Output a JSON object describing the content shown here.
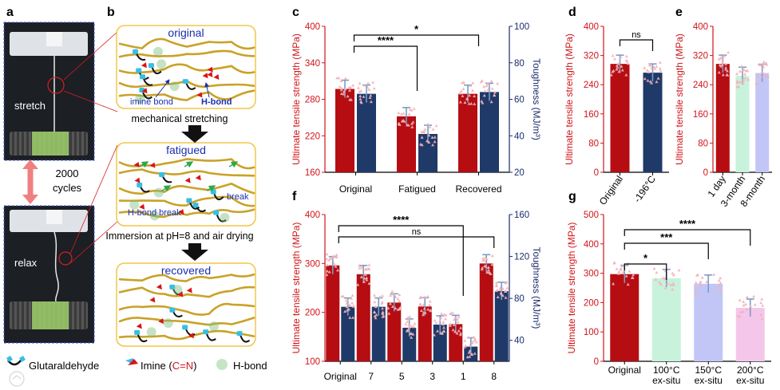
{
  "panel_letters": [
    "a",
    "b",
    "c",
    "d",
    "e",
    "f",
    "g"
  ],
  "photos": {
    "stretch_label": "stretch",
    "relax_label": "relax",
    "cycles_label": "2000\ncycles"
  },
  "schematic": {
    "states": [
      "original",
      "fatigued",
      "recovered"
    ],
    "annotations": {
      "imine_bond": "imine bond",
      "h_bond": "H-bond",
      "h_bond_break": "H-bond break",
      "break": "break"
    },
    "process_labels": [
      "mechanical stretching",
      "Immersion at pH=8 and air drying"
    ],
    "legend": [
      {
        "label": "Glutaraldehyde"
      },
      {
        "label": "Imine (",
        "highlight": "C=N",
        "suffix": ")"
      },
      {
        "label": "H-bond"
      }
    ]
  },
  "colors": {
    "red": "#b50d12",
    "navy": "#1f3a68",
    "mint": "#c8f2dc",
    "lavender": "#c2c6f7",
    "pink": "#f4c7ea",
    "axis_red": "#d0141a",
    "axis_navy": "#1b2d6b",
    "scatter": "#f3b1b8",
    "rope": "#c9a227",
    "cyan": "#36bfe6",
    "hbond": "#7fbf7f",
    "frame": "#f2c548",
    "schematic_label": "#1a2fae"
  },
  "chart_data": [
    {
      "panel": "c",
      "type": "bar",
      "categories": [
        "Original",
        "Fatigued",
        "Recovered"
      ],
      "series": [
        {
          "values": [
            297,
            252,
            289
          ]
        },
        {
          "values": [
            63,
            41,
            64
          ]
        }
      ],
      "ylabel": "Ultimate tensile strength (MPa)",
      "y2label": "Toughness (MJ/m³)",
      "ylim": [
        160,
        400
      ],
      "y2lim": [
        20,
        100
      ],
      "yticks": [
        160,
        220,
        280,
        340,
        400
      ],
      "y2ticks": [
        20,
        40,
        60,
        80,
        100
      ],
      "significance": [
        {
          "from": "Original",
          "to": "Fatigued",
          "label": "****"
        },
        {
          "from": "Original",
          "to": "Recovered",
          "label": "*"
        }
      ]
    },
    {
      "panel": "d",
      "type": "bar",
      "categories": [
        "Original",
        "-196°C"
      ],
      "values": [
        297,
        273
      ],
      "ylabel": "Ultimate tensile strength (MPa)",
      "ylim": [
        0,
        400
      ],
      "yticks": [
        0,
        80,
        160,
        240,
        320,
        400
      ],
      "significance": [
        {
          "from": "Original",
          "to": "-196°C",
          "label": "ns"
        }
      ]
    },
    {
      "panel": "e",
      "type": "bar",
      "categories": [
        "1 day",
        "3-month",
        "8-month"
      ],
      "values": [
        297,
        264,
        272
      ],
      "ylabel": "Ultimate tensile strength (MPa)",
      "ylim": [
        0,
        400
      ],
      "yticks": [
        0,
        80,
        160,
        240,
        320,
        400
      ]
    },
    {
      "panel": "f",
      "type": "bar",
      "categories": [
        "Original",
        "7",
        "5",
        "3",
        "1",
        "8"
      ],
      "series": [
        {
          "values": [
            296,
            278,
            220,
            212,
            176,
            300
          ]
        },
        {
          "values": [
            72,
            72,
            52,
            55,
            34,
            87
          ]
        }
      ],
      "ylabel": "Ultimate tensile strength (MPa)",
      "y2label": "Toughness (MJ/m³)",
      "ylim": [
        100,
        400
      ],
      "y2lim": [
        20,
        160
      ],
      "yticks": [
        100,
        200,
        300,
        400
      ],
      "y2ticks": [
        40,
        80,
        120,
        160
      ],
      "significance": [
        {
          "from": "Original",
          "to": "8",
          "label": "ns"
        },
        {
          "from": "Original",
          "to": "1",
          "label": "****"
        }
      ]
    },
    {
      "panel": "g",
      "type": "bar",
      "categories": [
        "Original",
        "100°C\nex-situ",
        "150°C\nex-situ",
        "200°C\nex-situ"
      ],
      "values": [
        297,
        283,
        264,
        182
      ],
      "ylabel": "Ultimate tensile strength (MPa)",
      "ylim": [
        0,
        500
      ],
      "yticks": [
        0,
        100,
        200,
        300,
        400,
        500
      ],
      "significance": [
        {
          "from": "Original",
          "to": "100°C\nex-situ",
          "label": "*"
        },
        {
          "from": "Original",
          "to": "150°C\nex-situ",
          "label": "***"
        },
        {
          "from": "Original",
          "to": "200°C\nex-situ",
          "label": "****"
        }
      ]
    }
  ]
}
